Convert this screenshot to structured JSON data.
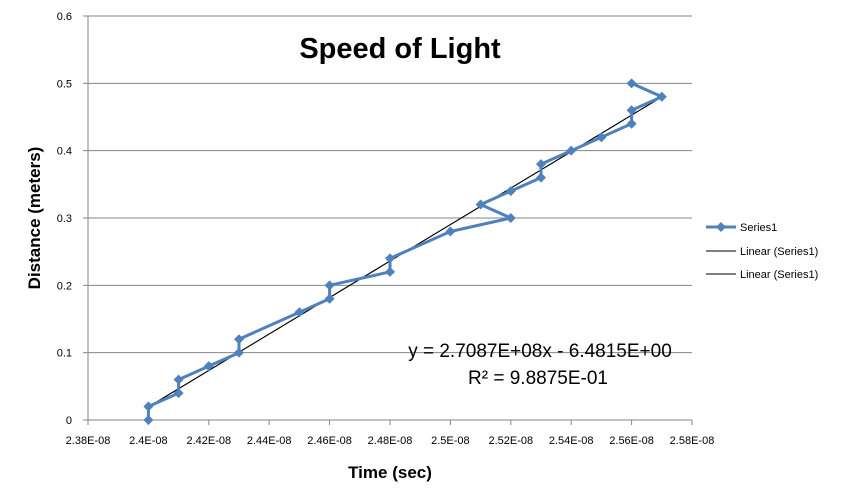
{
  "chart_data": {
    "type": "scatter",
    "title": "Speed of Light",
    "xlabel": "Time (sec)",
    "ylabel": "Distance (meters)",
    "xlim": [
      2.38e-08,
      2.58e-08
    ],
    "ylim": [
      0,
      0.6
    ],
    "x_ticks": [
      2.38e-08,
      2.4e-08,
      2.42e-08,
      2.44e-08,
      2.46e-08,
      2.48e-08,
      2.5e-08,
      2.52e-08,
      2.54e-08,
      2.56e-08,
      2.58e-08
    ],
    "x_tick_labels": [
      "2.38E-08",
      "2.4E-08",
      "2.42E-08",
      "2.44E-08",
      "2.46E-08",
      "2.48E-08",
      "2.5E-08",
      "2.52E-08",
      "2.54E-08",
      "2.56E-08",
      "2.58E-08"
    ],
    "y_ticks": [
      0,
      0.1,
      0.2,
      0.3,
      0.4,
      0.5,
      0.6
    ],
    "y_tick_labels": [
      "0",
      "0.1",
      "0.2",
      "0.3",
      "0.4",
      "0.5",
      "0.6"
    ],
    "grid": "horizontal",
    "legend_position": "right",
    "series": [
      {
        "name": "Series1",
        "color": "#4F81BD",
        "marker": "diamond",
        "x": [
          2.4e-08,
          2.4e-08,
          2.41e-08,
          2.41e-08,
          2.42e-08,
          2.43e-08,
          2.43e-08,
          2.45e-08,
          2.46e-08,
          2.46e-08,
          2.48e-08,
          2.48e-08,
          2.5e-08,
          2.52e-08,
          2.51e-08,
          2.52e-08,
          2.53e-08,
          2.53e-08,
          2.54e-08,
          2.55e-08,
          2.56e-08,
          2.56e-08,
          2.57e-08,
          2.56e-08
        ],
        "y": [
          0.0,
          0.02,
          0.04,
          0.06,
          0.08,
          0.1,
          0.12,
          0.16,
          0.18,
          0.2,
          0.22,
          0.24,
          0.28,
          0.3,
          0.32,
          0.34,
          0.36,
          0.38,
          0.4,
          0.42,
          0.44,
          0.46,
          0.48,
          0.5
        ]
      }
    ],
    "trendlines": [
      {
        "name": "Linear (Series1)",
        "type": "linear",
        "color": "#000000",
        "slope": 270870000,
        "intercept": -6.4815
      },
      {
        "name": "Linear (Series1)",
        "type": "linear",
        "color": "#000000",
        "slope": 270870000,
        "intercept": -6.4815
      }
    ],
    "equation": "y = 2.7087E+08x - 6.4815E+00",
    "r_squared": "R² = 9.8875E-01"
  }
}
